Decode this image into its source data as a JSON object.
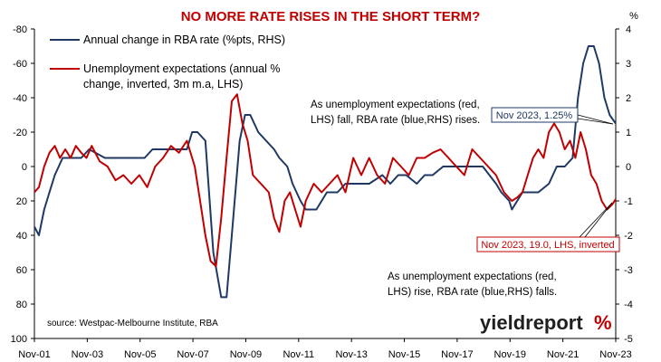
{
  "chart_data": {
    "type": "line",
    "title": "NO MORE RATE RISES IN THE SHORT TERM?",
    "left_axis": {
      "ticks": [
        "-80",
        "-60",
        "-40",
        "-20",
        "0",
        "20",
        "40",
        "60",
        "80",
        "100"
      ],
      "range": [
        -80,
        100
      ],
      "inverted": true
    },
    "right_axis": {
      "unit": "%",
      "ticks": [
        "4",
        "3",
        "2",
        "1",
        "0",
        "-1",
        "-2",
        "-3",
        "-4",
        "-5"
      ],
      "range": [
        -5,
        4
      ]
    },
    "x_ticks": [
      "Nov-01",
      "Nov-03",
      "Nov-05",
      "Nov-07",
      "Nov-09",
      "Nov-11",
      "Nov-13",
      "Nov-15",
      "Nov-17",
      "Nov-19",
      "Nov-21",
      "Nov-23"
    ],
    "grid": false,
    "legend": [
      {
        "name": "Annual change in RBA rate (%pts, RHS)",
        "color": "#1f3864"
      },
      {
        "name": "Unemployment expectations (annual %",
        "name2": "change, inverted, 3m m.a, LHS)",
        "color": "#c00000"
      }
    ],
    "series": [
      {
        "name": "Annual change in RBA rate (%pts, RHS)",
        "axis": "right",
        "color": "#1f3864",
        "x": [
          2001.83,
          2002.0,
          2002.2,
          2002.4,
          2002.6,
          2002.9,
          2003.3,
          2003.6,
          2003.9,
          2004.5,
          2004.8,
          2005.0,
          2005.5,
          2006.0,
          2006.3,
          2006.6,
          2007.0,
          2007.3,
          2007.6,
          2007.8,
          2008.0,
          2008.3,
          2008.6,
          2008.9,
          2009.1,
          2009.3,
          2009.6,
          2009.8,
          2010.0,
          2010.3,
          2010.6,
          2010.9,
          2011.1,
          2011.4,
          2011.6,
          2011.9,
          2012.1,
          2012.5,
          2012.9,
          2013.3,
          2013.6,
          2014.0,
          2014.5,
          2015.0,
          2015.3,
          2015.6,
          2015.9,
          2016.3,
          2016.6,
          2016.9,
          2017.3,
          2017.8,
          2018.3,
          2018.8,
          2019.3,
          2019.5,
          2019.8,
          2019.9,
          2020.1,
          2020.3,
          2020.6,
          2020.9,
          2021.3,
          2021.6,
          2021.9,
          2022.2,
          2022.4,
          2022.6,
          2022.8,
          2023.0,
          2023.2,
          2023.4,
          2023.6,
          2023.83
        ],
        "values": [
          -1.75,
          -2.0,
          -1.25,
          -0.75,
          -0.25,
          0.25,
          0.25,
          0.25,
          0.5,
          0.25,
          0.25,
          0.25,
          0.25,
          0.25,
          0.5,
          0.5,
          0.5,
          0.5,
          0.5,
          1.0,
          1.0,
          0.75,
          -2.5,
          -3.8,
          -3.8,
          -2.0,
          0.75,
          1.5,
          1.5,
          1.0,
          0.75,
          0.5,
          0.25,
          0.0,
          -0.5,
          -1.0,
          -1.25,
          -1.25,
          -0.75,
          -0.75,
          -0.5,
          -0.5,
          -0.5,
          -0.25,
          -0.5,
          -0.25,
          -0.25,
          -0.5,
          -0.25,
          -0.25,
          0.0,
          0.0,
          0.0,
          0.0,
          -0.5,
          -0.75,
          -1.0,
          -1.25,
          -1.0,
          -0.75,
          -0.75,
          -0.75,
          -0.5,
          0.0,
          0.0,
          0.25,
          2.0,
          3.0,
          3.5,
          3.5,
          3.0,
          2.0,
          1.5,
          1.25
        ]
      },
      {
        "name": "Unemployment expectations (annual % change, inverted, 3m m.a, LHS)",
        "axis": "left",
        "color": "#c00000",
        "x": [
          2001.83,
          2002.0,
          2002.2,
          2002.4,
          2002.6,
          2002.8,
          2003.0,
          2003.2,
          2003.4,
          2003.6,
          2003.8,
          2004.0,
          2004.3,
          2004.6,
          2004.9,
          2005.2,
          2005.5,
          2005.8,
          2006.1,
          2006.4,
          2006.7,
          2007.0,
          2007.3,
          2007.6,
          2007.9,
          2008.1,
          2008.3,
          2008.5,
          2008.7,
          2008.9,
          2009.1,
          2009.3,
          2009.5,
          2009.7,
          2009.9,
          2010.1,
          2010.4,
          2010.7,
          2010.9,
          2011.1,
          2011.3,
          2011.5,
          2011.7,
          2011.9,
          2012.1,
          2012.4,
          2012.7,
          2013.0,
          2013.3,
          2013.6,
          2013.9,
          2014.2,
          2014.5,
          2014.8,
          2015.1,
          2015.4,
          2015.7,
          2016.0,
          2016.3,
          2016.6,
          2016.9,
          2017.2,
          2017.5,
          2017.8,
          2018.1,
          2018.4,
          2018.7,
          2019.0,
          2019.3,
          2019.6,
          2019.9,
          2020.1,
          2020.3,
          2020.5,
          2020.7,
          2020.9,
          2021.1,
          2021.3,
          2021.5,
          2021.7,
          2021.9,
          2022.1,
          2022.3,
          2022.5,
          2022.7,
          2022.9,
          2023.1,
          2023.3,
          2023.5,
          2023.7,
          2023.83
        ],
        "values": [
          15,
          12,
          0,
          -8,
          -12,
          -5,
          -10,
          -5,
          -12,
          -8,
          -5,
          -12,
          -3,
          0,
          8,
          5,
          10,
          5,
          12,
          0,
          -5,
          -12,
          -8,
          -15,
          0,
          20,
          40,
          55,
          58,
          30,
          -5,
          -38,
          -42,
          -25,
          -15,
          5,
          10,
          15,
          30,
          38,
          20,
          15,
          25,
          35,
          20,
          10,
          15,
          10,
          5,
          15,
          -5,
          5,
          -5,
          5,
          10,
          -5,
          0,
          5,
          -5,
          -5,
          -8,
          -10,
          -5,
          0,
          5,
          -10,
          -5,
          0,
          5,
          15,
          20,
          18,
          15,
          5,
          -5,
          -10,
          -5,
          -20,
          -25,
          -20,
          -10,
          -15,
          -5,
          -20,
          -10,
          5,
          10,
          20,
          25,
          22,
          19
        ]
      }
    ],
    "annotations": [
      {
        "text": [
          "As unemployment expectations (red,",
          "LHS) fall, RBA rate (blue,RHS) rises."
        ]
      },
      {
        "text": [
          "As unemployment expectations (red,",
          "LHS) rise, RBA rate (blue,RHS) falls."
        ]
      }
    ],
    "callouts": [
      {
        "text": "Nov 2023, 1.25%",
        "color": "#1f3864"
      },
      {
        "text": "Nov 2023, 19.0, LHS, inverted",
        "color": "#c00000"
      }
    ],
    "source": "source: Westpac-Melbourne Institute, RBA",
    "brand": {
      "text": "yieldreport",
      "symbol": "%"
    }
  }
}
